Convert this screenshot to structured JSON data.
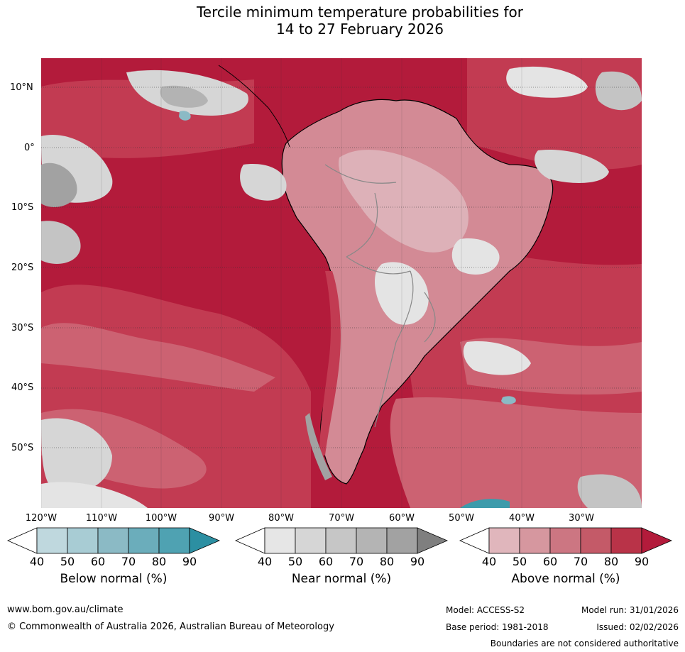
{
  "title": {
    "line1": "Tercile minimum temperature probabilities for",
    "line2": "14 to 27 February 2026"
  },
  "map": {
    "latitude_labels": [
      "10°N",
      "0°",
      "10°S",
      "20°S",
      "30°S",
      "40°S",
      "50°S"
    ],
    "longitude_labels": [
      "120°W",
      "110°W",
      "100°W",
      "90°W",
      "80°W",
      "70°W",
      "60°W",
      "50°W",
      "40°W",
      "30°W"
    ],
    "dominant_category": "Above normal",
    "colors": {
      "above_90": "#b31b3b",
      "above_80": "#c23b52",
      "above_70": "#cc6272",
      "above_60": "#d38a95",
      "above_50": "#ddb1b8",
      "near_40": "#e4e4e4",
      "near_50": "#d6d6d6",
      "near_60": "#c4c4c4",
      "near_70": "#b3b3b3",
      "near_80": "#a2a2a2",
      "below_60": "#8bbac5",
      "below_80": "#3d9bab",
      "land_outline": "#000000",
      "country_borders": "#888888",
      "gridline": "#333333"
    }
  },
  "legend": {
    "ticks": [
      "40",
      "50",
      "60",
      "70",
      "80",
      "90"
    ],
    "below": {
      "title": "Below normal (%)",
      "colors": [
        "#ffffff",
        "#bfd8de",
        "#a8ccd4",
        "#8bbac5",
        "#6badbb",
        "#4fa2b2",
        "#2c8fa2"
      ]
    },
    "near": {
      "title": "Near normal (%)",
      "colors": [
        "#ffffff",
        "#e6e6e6",
        "#d6d6d6",
        "#c6c6c6",
        "#b4b4b4",
        "#a2a2a2",
        "#7f7f7f"
      ]
    },
    "above": {
      "title": "Above normal (%)",
      "colors": [
        "#ffffff",
        "#e0b6bc",
        "#d6979f",
        "#cc7682",
        "#c45a68",
        "#b93348",
        "#b31b3b"
      ]
    }
  },
  "footer": {
    "website": "www.bom.gov.au/climate",
    "copyright": "© Commonwealth of Australia 2026, Australian Bureau of Meteorology",
    "model": "Model: ACCESS-S2",
    "base_period": "Base period: 1981-2018",
    "model_run": "Model run: 31/01/2026",
    "issued": "Issued: 02/02/2026",
    "disclaimer": "Boundaries are not considered authoritative"
  }
}
